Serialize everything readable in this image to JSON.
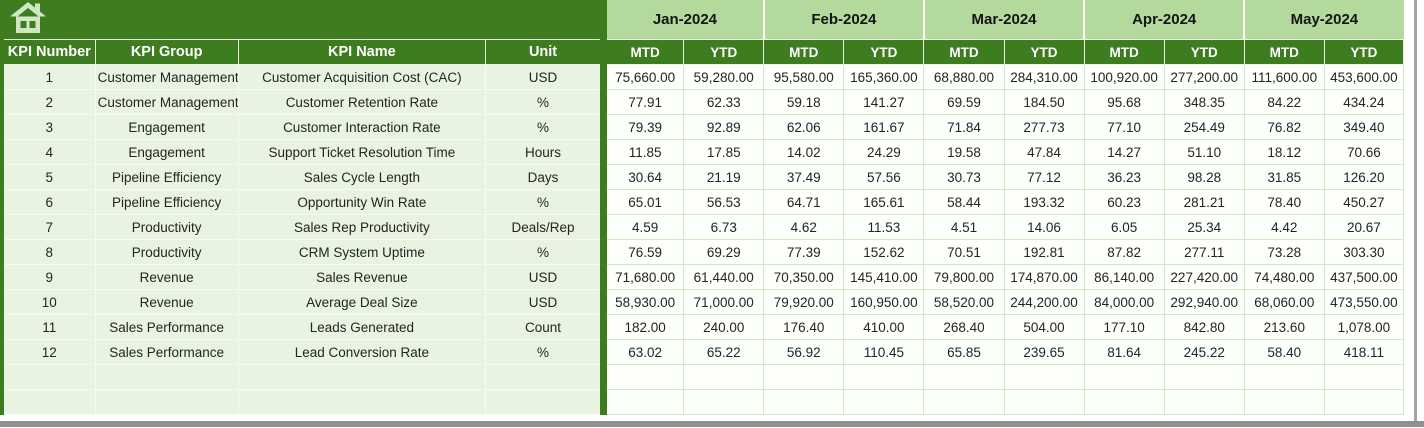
{
  "table": {
    "corner": {
      "icon": "home-icon"
    },
    "col_headers": [
      "KPI Number",
      "KPI Group",
      "KPI Name",
      "Unit"
    ],
    "months": [
      "Jan-2024",
      "Feb-2024",
      "Mar-2024",
      "Apr-2024",
      "May-2024"
    ],
    "sub_headers": [
      "MTD",
      "YTD"
    ],
    "rows": [
      {
        "kpi_number": "1",
        "kpi_group": "Customer Management",
        "kpi_name": "Customer Acquisition Cost (CAC)",
        "unit": "USD",
        "values": [
          "75,660.00",
          "59,280.00",
          "95,580.00",
          "165,360.00",
          "68,880.00",
          "284,310.00",
          "100,920.00",
          "277,200.00",
          "111,600.00",
          "453,600.00"
        ]
      },
      {
        "kpi_number": "2",
        "kpi_group": "Customer Management",
        "kpi_name": "Customer Retention Rate",
        "unit": "%",
        "values": [
          "77.91",
          "62.33",
          "59.18",
          "141.27",
          "69.59",
          "184.50",
          "95.68",
          "348.35",
          "84.22",
          "434.24"
        ]
      },
      {
        "kpi_number": "3",
        "kpi_group": "Engagement",
        "kpi_name": "Customer Interaction Rate",
        "unit": "%",
        "values": [
          "79.39",
          "92.89",
          "62.06",
          "161.67",
          "71.84",
          "277.73",
          "77.10",
          "254.49",
          "76.82",
          "349.40"
        ]
      },
      {
        "kpi_number": "4",
        "kpi_group": "Engagement",
        "kpi_name": "Support Ticket Resolution Time",
        "unit": "Hours",
        "values": [
          "11.85",
          "17.85",
          "14.02",
          "24.29",
          "19.58",
          "47.84",
          "14.27",
          "51.10",
          "18.12",
          "70.66"
        ]
      },
      {
        "kpi_number": "5",
        "kpi_group": "Pipeline Efficiency",
        "kpi_name": "Sales Cycle Length",
        "unit": "Days",
        "values": [
          "30.64",
          "21.19",
          "37.49",
          "57.56",
          "30.73",
          "77.12",
          "36.23",
          "98.28",
          "31.85",
          "126.20"
        ]
      },
      {
        "kpi_number": "6",
        "kpi_group": "Pipeline Efficiency",
        "kpi_name": "Opportunity Win Rate",
        "unit": "%",
        "values": [
          "65.01",
          "56.53",
          "64.71",
          "165.61",
          "58.44",
          "193.32",
          "60.23",
          "281.21",
          "78.40",
          "450.27"
        ]
      },
      {
        "kpi_number": "7",
        "kpi_group": "Productivity",
        "kpi_name": "Sales Rep Productivity",
        "unit": "Deals/Rep",
        "values": [
          "4.59",
          "6.73",
          "4.62",
          "11.53",
          "4.51",
          "14.06",
          "6.05",
          "25.34",
          "4.42",
          "20.67"
        ]
      },
      {
        "kpi_number": "8",
        "kpi_group": "Productivity",
        "kpi_name": "CRM System Uptime",
        "unit": "%",
        "values": [
          "76.59",
          "69.29",
          "77.39",
          "152.62",
          "70.51",
          "192.81",
          "87.82",
          "277.11",
          "73.28",
          "303.30"
        ]
      },
      {
        "kpi_number": "9",
        "kpi_group": "Revenue",
        "kpi_name": "Sales Revenue",
        "unit": "USD",
        "values": [
          "71,680.00",
          "61,440.00",
          "70,350.00",
          "145,410.00",
          "79,800.00",
          "174,870.00",
          "86,140.00",
          "227,420.00",
          "74,480.00",
          "437,500.00"
        ]
      },
      {
        "kpi_number": "10",
        "kpi_group": "Revenue",
        "kpi_name": "Average Deal Size",
        "unit": "USD",
        "values": [
          "58,930.00",
          "71,000.00",
          "79,920.00",
          "160,950.00",
          "58,520.00",
          "244,200.00",
          "84,000.00",
          "292,940.00",
          "68,060.00",
          "473,550.00"
        ]
      },
      {
        "kpi_number": "11",
        "kpi_group": "Sales Performance",
        "kpi_name": "Leads Generated",
        "unit": "Count",
        "values": [
          "182.00",
          "240.00",
          "176.40",
          "410.00",
          "268.40",
          "504.00",
          "177.10",
          "842.80",
          "213.60",
          "1,078.00"
        ]
      },
      {
        "kpi_number": "12",
        "kpi_group": "Sales Performance",
        "kpi_name": "Lead Conversion Rate",
        "unit": "%",
        "values": [
          "63.02",
          "65.22",
          "56.92",
          "110.45",
          "65.85",
          "239.65",
          "81.64",
          "245.22",
          "58.40",
          "418.11"
        ]
      }
    ],
    "empty_rows": 2
  },
  "colors": {
    "dark_green": "#3e7c20",
    "month_green": "#b3d99c",
    "left_cell_green": "#e9f3e1",
    "data_cell_white": "#fdfffb",
    "grid_green": "#d6e8c3",
    "frame_gray": "#8f8f8f",
    "icon_pale": "#cfe7c5",
    "text_dark": "#242424",
    "text_white": "#ffffff"
  }
}
